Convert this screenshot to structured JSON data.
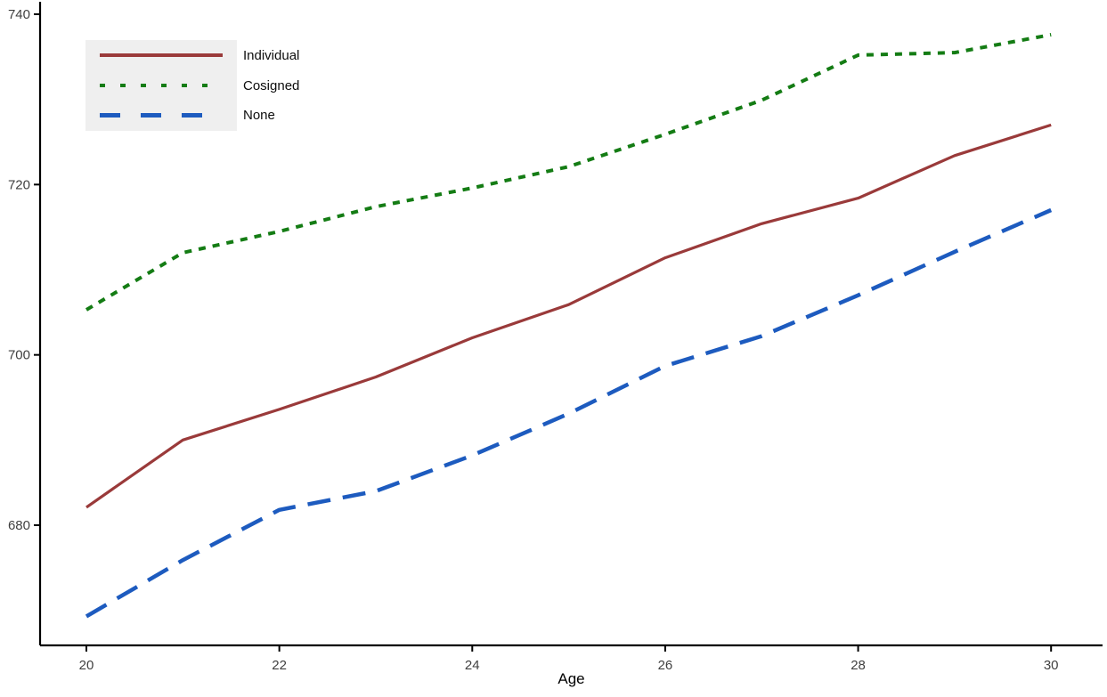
{
  "chart_data": {
    "type": "line",
    "title": "",
    "xlabel": "Age",
    "ylabel": "",
    "x": [
      20,
      21,
      22,
      23,
      24,
      25,
      26,
      27,
      28,
      29,
      30
    ],
    "xticks": [
      20,
      22,
      24,
      26,
      28,
      30
    ],
    "yticks": [
      680,
      700,
      720,
      740
    ],
    "xlim": [
      19.5,
      30.6
    ],
    "ylim": [
      665.9,
      741.7
    ],
    "grid": false,
    "legend_position": "top-left",
    "series": [
      {
        "name": "Individual",
        "style": "solid",
        "color": "#9a3a3a",
        "values": [
          682.1,
          690.0,
          693.6,
          697.4,
          702.0,
          705.9,
          711.4,
          715.4,
          718.4,
          723.4,
          727.0
        ]
      },
      {
        "name": "Cosigned",
        "style": "dotted",
        "color": "#147c14",
        "values": [
          705.3,
          712.0,
          714.5,
          717.4,
          719.6,
          722.1,
          725.9,
          729.9,
          735.2,
          735.5,
          737.6
        ]
      },
      {
        "name": "None",
        "style": "dashed",
        "color": "#1d5bbf",
        "values": [
          669.3,
          675.9,
          681.8,
          684.0,
          688.2,
          693.1,
          698.7,
          702.2,
          707.0,
          712.1,
          717.0
        ]
      }
    ]
  },
  "legend": {
    "items": [
      {
        "label": "Individual"
      },
      {
        "label": "Cosigned"
      },
      {
        "label": "None"
      }
    ]
  },
  "axis_colors": {
    "axis_line": "#000000",
    "tick_text": "#404040"
  }
}
